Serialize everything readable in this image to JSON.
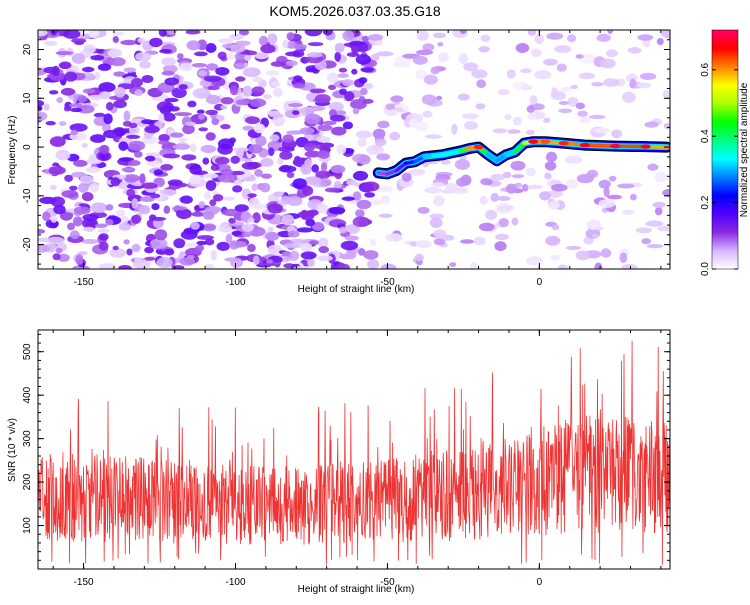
{
  "title": "KOM5.2026.037.03.35.G18",
  "chart_data": [
    {
      "type": "heatmap",
      "name": "frequency-vs-height",
      "xlabel": "Height of straight line (km)",
      "ylabel": "Frequency (Hz)",
      "xlim": [
        -165,
        43
      ],
      "ylim": [
        -25,
        24
      ],
      "xticks": [
        -150,
        -100,
        -50,
        0
      ],
      "xtick_labels": [
        "-150",
        "-100",
        "-50",
        "0"
      ],
      "yticks": [
        20,
        10,
        0,
        -10,
        -20
      ],
      "ytick_labels": [
        "20",
        "10",
        "0",
        "-10",
        "-20"
      ],
      "colorbar": {
        "label": "Normalized spectral amplitude",
        "range": [
          0.0,
          0.72
        ],
        "ticks": [
          0.0,
          0.2,
          0.4,
          0.6
        ],
        "tick_labels": [
          "0.0",
          "0.2",
          "0.4",
          "0.6"
        ],
        "colors": [
          "#ffffff",
          "#d6b4ff",
          "#8a2be2",
          "#5000ff",
          "#0000ff",
          "#0080ff",
          "#00ffff",
          "#00ff80",
          "#00ff00",
          "#aaff00",
          "#ffff00",
          "#ff8000",
          "#ff0000",
          "#ff0066"
        ]
      },
      "signal_trace": {
        "x": [
          -53,
          -50,
          -47,
          -44,
          -41,
          -38,
          -35,
          -32,
          -29,
          -26,
          -23,
          -20,
          -17,
          -14,
          -11,
          -8,
          -5,
          -2,
          2,
          8,
          15,
          25,
          35,
          42
        ],
        "y": [
          -5.3,
          -5.5,
          -4.8,
          -3.3,
          -3.0,
          -2.0,
          -1.8,
          -1.6,
          -1.2,
          -0.8,
          -0.3,
          0.0,
          -1.5,
          -2.8,
          -1.6,
          -1.0,
          0.8,
          1.1,
          1.1,
          0.8,
          0.4,
          0.2,
          0.1,
          0.0
        ],
        "amplitude": [
          0.1,
          0.1,
          0.12,
          0.18,
          0.22,
          0.3,
          0.32,
          0.34,
          0.33,
          0.36,
          0.55,
          0.6,
          0.3,
          0.3,
          0.28,
          0.35,
          0.5,
          0.62,
          0.58,
          0.6,
          0.62,
          0.64,
          0.63,
          0.55
        ]
      }
    },
    {
      "type": "line",
      "name": "snr-vs-height",
      "xlabel": "Height of straight line (km)",
      "ylabel": "SNR (10 * v/v)",
      "xlim": [
        -165,
        43
      ],
      "ylim": [
        0,
        550
      ],
      "xticks": [
        -150,
        -100,
        -50,
        0
      ],
      "xtick_labels": [
        "-150",
        "-100",
        "-50",
        "0"
      ],
      "yticks": [
        100,
        200,
        300,
        400,
        500
      ],
      "ytick_labels": [
        "100",
        "200",
        "300",
        "400",
        "500"
      ],
      "color": "#ee3333",
      "baseline_trend": {
        "x": [
          -165,
          -150,
          -130,
          -110,
          -90,
          -70,
          -50,
          -30,
          -10,
          10,
          30,
          43
        ],
        "y": [
          175,
          165,
          158,
          150,
          145,
          148,
          155,
          170,
          190,
          215,
          225,
          205
        ]
      },
      "sample_count": 1500
    }
  ]
}
